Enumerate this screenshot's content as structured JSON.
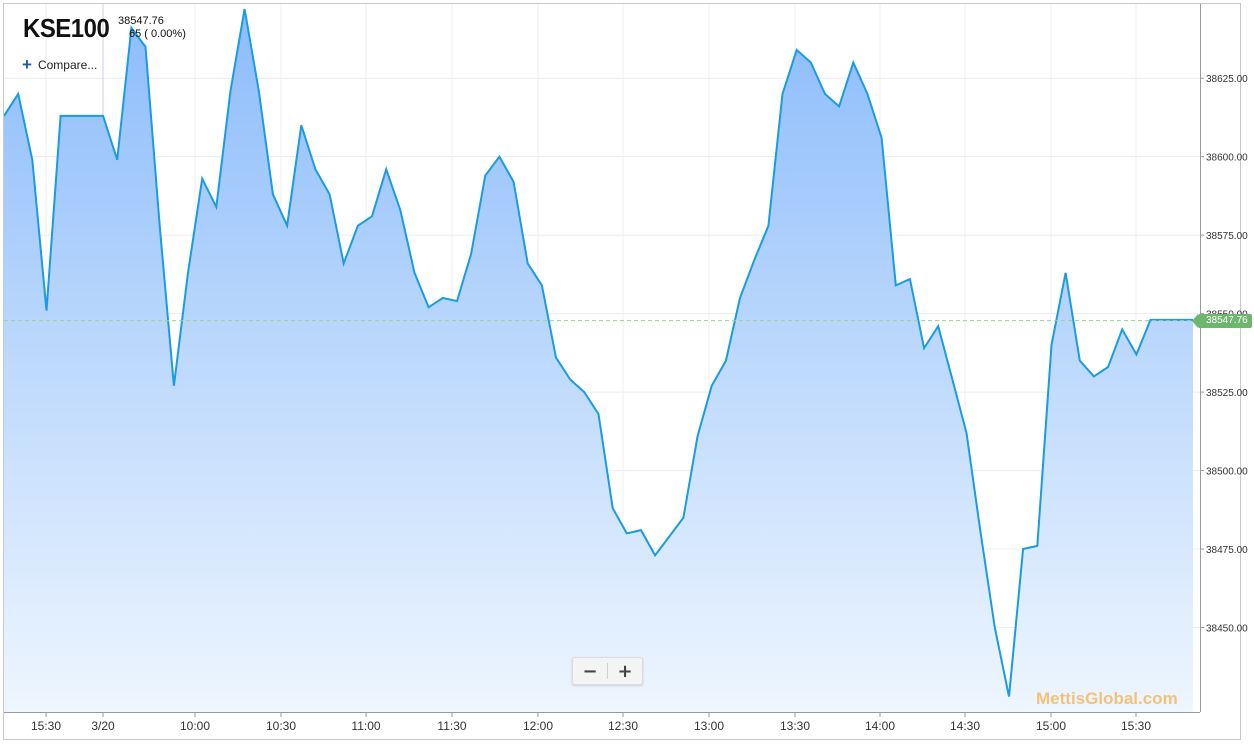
{
  "header": {
    "symbol": "KSE100",
    "price": "38547.76",
    "change": "65 ( 0.00%)",
    "compare_label": "Compare..."
  },
  "zoom": {
    "minus": "−",
    "plus": "+"
  },
  "watermark": "MettisGlobal.com",
  "last_price_label": "38547.76",
  "colors": {
    "line": "#1b9be0",
    "fill_top": "#8cbcfb",
    "fill_bottom": "#eef6fe",
    "last_price_tag": "#6db66d",
    "last_price_line": "#9ccf9c",
    "watermark": "#f3c27a"
  },
  "icons": {
    "compare": "plus-icon"
  },
  "chart_data": {
    "type": "area",
    "title": "",
    "xlabel": "",
    "ylabel": "",
    "ylim": [
      38425,
      38648
    ],
    "grid": true,
    "x_ticks": [
      "15:30",
      "3/20",
      "10:00",
      "10:30",
      "11:00",
      "11:30",
      "12:00",
      "12:30",
      "13:00",
      "13:30",
      "14:00",
      "14:30",
      "15:00",
      "15:30"
    ],
    "y_ticks": [
      "38450.00",
      "38475.00",
      "38500.00",
      "38525.00",
      "38550.00",
      "38575.00",
      "38600.00",
      "38625.00"
    ],
    "y_tick_values": [
      38450,
      38475,
      38500,
      38525,
      38550,
      38575,
      38600,
      38625
    ],
    "last_price": 38547.76,
    "series": [
      {
        "values": [
          38613,
          38620,
          38599,
          38551,
          38613,
          38613,
          38613,
          38613,
          38599,
          38641,
          38635,
          38578,
          38527,
          38563,
          38593,
          38584,
          38621,
          38647,
          38621,
          38588,
          38578,
          38610,
          38596,
          38588,
          38566,
          38578,
          38581,
          38596,
          38583,
          38563,
          38552,
          38555,
          38554,
          38569,
          38594,
          38600,
          38592,
          38566,
          38559,
          38536,
          38529,
          38525,
          38518,
          38488,
          38480,
          38481,
          38473,
          38479,
          38485,
          38511,
          38527,
          38535,
          38555,
          38567,
          38578,
          38620,
          38634,
          38630,
          38620,
          38616,
          38630,
          38620,
          38606,
          38559,
          38561,
          38539,
          38546,
          38529,
          38512,
          38480,
          38450,
          38428,
          38475,
          38476,
          38540,
          38563,
          38535,
          38530,
          38533,
          38545,
          38537,
          38548,
          38548,
          38548,
          38548
        ]
      }
    ]
  }
}
